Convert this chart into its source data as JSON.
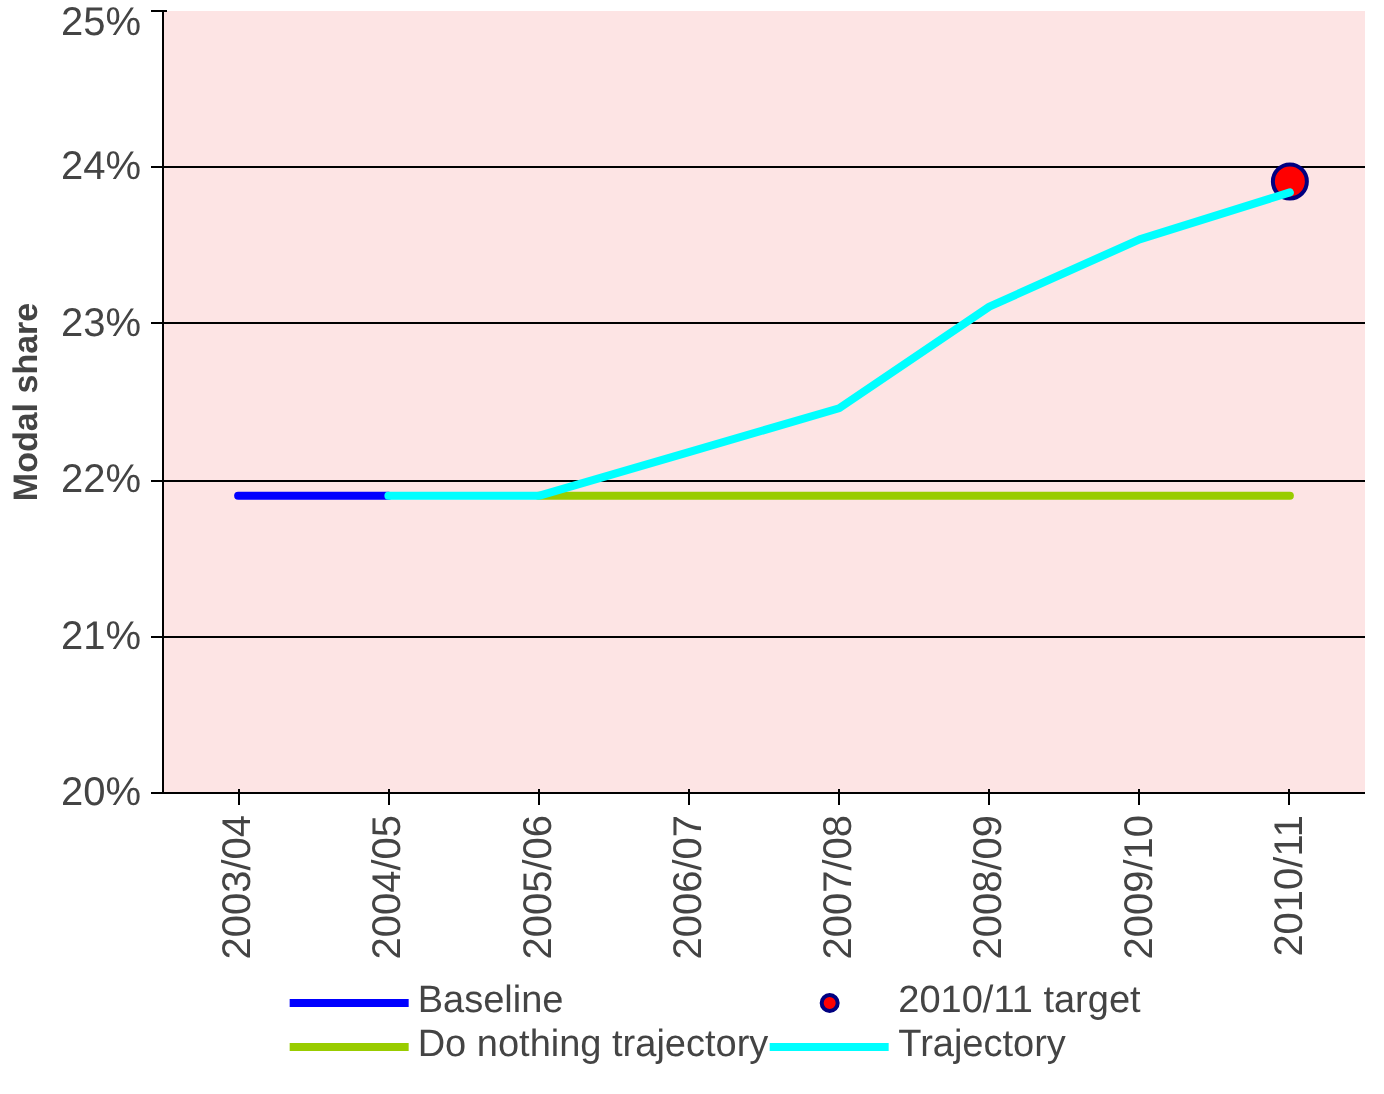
{
  "chart_data": {
    "type": "line",
    "ylabel": "Modal share",
    "categories": [
      "2003/04",
      "2004/05",
      "2005/06",
      "2006/07",
      "2007/08",
      "2008/09",
      "2009/10",
      "2010/11"
    ],
    "ylim": [
      20,
      25
    ],
    "yticks": [
      {
        "value": 20,
        "label": "20%"
      },
      {
        "value": 21,
        "label": "21%"
      },
      {
        "value": 22,
        "label": "22%"
      },
      {
        "value": 23,
        "label": "23%"
      },
      {
        "value": 24,
        "label": "24%"
      },
      {
        "value": 25,
        "label": "25%"
      }
    ],
    "grid": "y",
    "legend": "bottom",
    "line_style": "solid",
    "series": [
      {
        "name": "Baseline",
        "color": "#0000ff",
        "values": [
          21.9,
          21.9,
          null,
          null,
          null,
          null,
          null,
          null
        ]
      },
      {
        "name": "2010/11 target",
        "type": "scatter",
        "marker": "circle",
        "color": "#ff0000",
        "values": [
          null,
          null,
          null,
          null,
          null,
          null,
          null,
          23.91
        ]
      },
      {
        "name": "Do nothing trajectory",
        "color": "#99cc00",
        "values": [
          null,
          null,
          21.9,
          21.9,
          21.9,
          21.9,
          21.9,
          21.9
        ]
      },
      {
        "name": "Trajectory",
        "color": "#00ffff",
        "values": [
          null,
          21.9,
          21.9,
          22.18,
          22.46,
          23.11,
          23.54,
          23.84
        ]
      }
    ]
  }
}
